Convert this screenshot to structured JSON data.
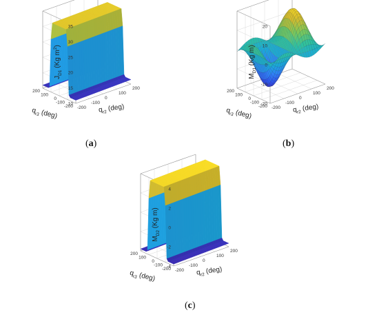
{
  "colormap": [
    "#3e26a8",
    "#2e4fe9",
    "#2f80f6",
    "#19a9d9",
    "#2dc0a0",
    "#7cc75a",
    "#d4bb2e",
    "#fde025"
  ],
  "chart_data": [
    {
      "panel_label": "a",
      "type": "surface3d",
      "zlabel": {
        "main": "J",
        "sub": "D1",
        "rest": " (Kg m",
        "sup": "2",
        "close": ")"
      },
      "xlabel": {
        "main": "q",
        "sub": "r2",
        "rest": " (deg)"
      },
      "ylabel": {
        "main": "q",
        "sub": "r3",
        "rest": " (deg)"
      },
      "x_range": [
        -200,
        200
      ],
      "y_range": [
        -200,
        200
      ],
      "z_range": [
        10,
        35
      ],
      "x_ticks": [
        -200,
        -100,
        0,
        100,
        200
      ],
      "y_ticks": [
        -200,
        -100,
        0,
        100,
        200
      ],
      "z_ticks": [
        10,
        15,
        20,
        25,
        30,
        35
      ],
      "surface": {
        "kind": "ridge",
        "min": 11,
        "max": 33,
        "center_q_r3": 0,
        "half_width_deg": 90,
        "edge_deg": 30
      }
    },
    {
      "panel_label": "b",
      "type": "surface3d",
      "zlabel": {
        "main": "M",
        "sub": "D1",
        "rest": " (Kg m)",
        "sup": "",
        "close": ""
      },
      "xlabel": {
        "main": "q",
        "sub": "r2",
        "rest": " (deg)"
      },
      "ylabel": {
        "main": "q",
        "sub": "r3",
        "rest": " (deg)"
      },
      "x_range": [
        -200,
        200
      ],
      "y_range": [
        -200,
        200
      ],
      "z_range": [
        -20,
        20
      ],
      "x_ticks": [
        -200,
        -100,
        0,
        100,
        200
      ],
      "y_ticks": [
        -200,
        -100,
        0,
        100,
        200
      ],
      "z_ticks": [
        -20,
        -10,
        0,
        10,
        20
      ],
      "surface": {
        "kind": "wave",
        "amplitude": 18
      }
    },
    {
      "panel_label": "c",
      "type": "surface3d",
      "zlabel": {
        "main": "M",
        "sub": "D2",
        "rest": " (Kg m)",
        "sup": "",
        "close": ""
      },
      "xlabel": {
        "main": "q",
        "sub": "r2",
        "rest": " (deg)"
      },
      "ylabel": {
        "main": "q",
        "sub": "r3",
        "rest": " (deg)"
      },
      "x_range": [
        -200,
        200
      ],
      "y_range": [
        -200,
        200
      ],
      "z_range": [
        -4,
        4
      ],
      "x_ticks": [
        -200,
        -100,
        0,
        100,
        200
      ],
      "y_ticks": [
        -200,
        -100,
        0,
        100,
        200
      ],
      "z_ticks": [
        -4,
        -2,
        0,
        2,
        4
      ],
      "surface": {
        "kind": "ridge",
        "min": -3.8,
        "max": 3.9,
        "center_q_r3": 0,
        "half_width_deg": 90,
        "edge_deg": 30
      }
    }
  ]
}
